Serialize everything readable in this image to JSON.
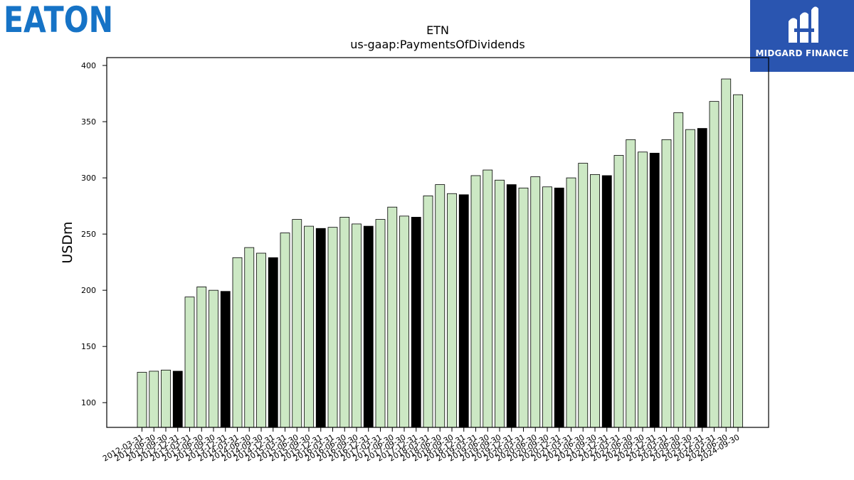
{
  "logos": {
    "left_text": "EATON",
    "left_color": "#1673c6",
    "right_text": "MIDGARD FINANCE",
    "right_bg": "#2a55b0"
  },
  "chart_data": {
    "type": "bar",
    "title": "ETN",
    "subtitle": "us-gaap:PaymentsOfDividends",
    "ylabel": "USDm",
    "xlabel": "",
    "ylim": [
      78,
      407
    ],
    "yticks": [
      100,
      150,
      200,
      250,
      300,
      350,
      400
    ],
    "grid": false,
    "colors": {
      "quarter": "#cce8c4",
      "year_end": "#000000",
      "edge": "#000000"
    },
    "categories": [
      "2012-03-31",
      "2012-06-30",
      "2012-09-30",
      "2012-12-31",
      "2013-03-31",
      "2013-06-30",
      "2013-09-30",
      "2013-12-31",
      "2014-03-31",
      "2014-06-30",
      "2014-09-30",
      "2014-12-31",
      "2015-03-31",
      "2015-06-30",
      "2015-09-30",
      "2015-12-31",
      "2016-03-31",
      "2016-06-30",
      "2016-09-30",
      "2016-12-31",
      "2017-03-31",
      "2017-06-30",
      "2017-09-30",
      "2017-12-31",
      "2018-03-31",
      "2018-06-30",
      "2018-09-30",
      "2018-12-31",
      "2019-03-31",
      "2019-06-30",
      "2019-09-30",
      "2019-12-31",
      "2020-03-31",
      "2020-06-30",
      "2020-09-30",
      "2020-12-31",
      "2021-03-31",
      "2021-06-30",
      "2021-09-30",
      "2021-12-31",
      "2022-03-31",
      "2022-06-30",
      "2022-09-30",
      "2022-12-31",
      "2023-03-31",
      "2023-06-30",
      "2023-09-30",
      "2023-12-31",
      "2024-03-31",
      "2024-06-30",
      "2024-09-30"
    ],
    "values": [
      127,
      128,
      129,
      128,
      194,
      203,
      200,
      199,
      229,
      238,
      233,
      229,
      251,
      263,
      257,
      255,
      256,
      265,
      259,
      257,
      263,
      274,
      266,
      265,
      284,
      294,
      286,
      285,
      302,
      307,
      298,
      294,
      291,
      301,
      292,
      291,
      300,
      313,
      303,
      302,
      320,
      334,
      323,
      322,
      334,
      358,
      343,
      344,
      368,
      388,
      374
    ],
    "year_end_flags": [
      false,
      false,
      false,
      true,
      false,
      false,
      false,
      true,
      false,
      false,
      false,
      true,
      false,
      false,
      false,
      true,
      false,
      false,
      false,
      true,
      false,
      false,
      false,
      true,
      false,
      false,
      false,
      true,
      false,
      false,
      false,
      true,
      false,
      false,
      false,
      true,
      false,
      false,
      false,
      true,
      false,
      false,
      false,
      true,
      false,
      false,
      false,
      true,
      false,
      false,
      false
    ]
  }
}
